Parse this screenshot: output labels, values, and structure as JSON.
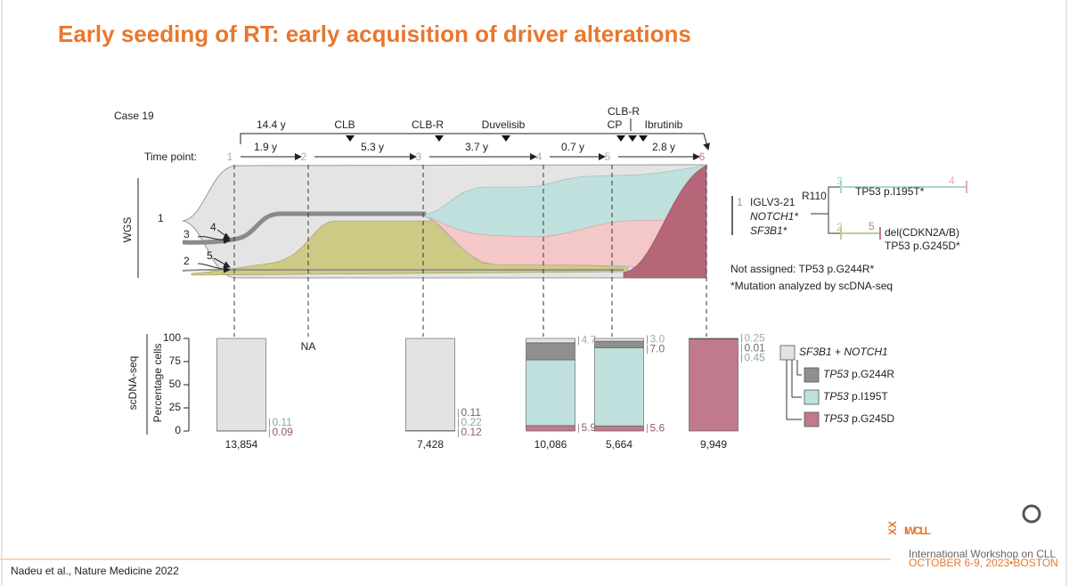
{
  "header": {
    "title": "Early seeding of RT: early acquisition of driver alterations"
  },
  "figure": {
    "case": "Case 19",
    "timeline": {
      "label": "Time point:",
      "points": [
        "1",
        "2",
        "3",
        "4",
        "5",
        "6"
      ],
      "total": "14.4 y",
      "intervals": [
        "1.9 y",
        "5.3 y",
        "3.7 y",
        "0.7 y",
        "2.8 y"
      ],
      "treatments": [
        "CLB",
        "CLB-R",
        "Duvelisib",
        "CLB-R",
        "CP",
        "Ibrutinib"
      ]
    },
    "wgs": {
      "label": "WGS",
      "clones": [
        "1",
        "3",
        "4",
        "2",
        "5"
      ]
    },
    "tree": {
      "nodes": [
        {
          "id": "1",
          "lines": [
            "IGLV3-21",
            "NOTCH1*",
            "SF3B1*"
          ],
          "sup": "R110"
        },
        {
          "id": "3",
          "lines": [
            "TP53 p.I195T*"
          ]
        },
        {
          "id": "4"
        },
        {
          "id": "2"
        },
        {
          "id": "5",
          "lines": [
            "del(CDKN2A/B)",
            "TP53 p.G245D*"
          ]
        }
      ],
      "not_assigned": "Not assigned: TP53 p.G244R*",
      "note": "*Mutation analyzed by scDNA-seq"
    },
    "scdna": {
      "title": "scDNA-seq",
      "y_label": "Percentage cells",
      "ylim": [
        0,
        100
      ],
      "yticks": [
        0,
        25,
        50,
        75,
        100
      ],
      "categories": [
        "13,854",
        null,
        "7,428",
        "10,086",
        "5,664",
        "9,949"
      ],
      "missing": "NA",
      "series": [
        {
          "name": "SF3B1 + NOTCH1",
          "color": "#e3e3e3",
          "values": [
            99.8,
            null,
            99.55,
            4.7,
            3.0,
            0.25
          ],
          "value_labels": [
            null,
            null,
            null,
            "4.7",
            "3.0",
            "0.25"
          ]
        },
        {
          "name": "TP53 p.G244R",
          "color": "#8f8f8f",
          "values": [
            null,
            null,
            0.11,
            18.4,
            7.0,
            0.01
          ],
          "value_labels": [
            null,
            null,
            "0.11",
            null,
            "7.0",
            "0.01"
          ]
        },
        {
          "name": "TP53 p.I195T",
          "color": "#bfe0dc",
          "values": [
            0.11,
            null,
            0.22,
            71,
            84.4,
            0.45
          ],
          "value_labels": [
            "0.11",
            null,
            "0.22",
            null,
            null,
            "0.45"
          ]
        },
        {
          "name": "TP53 p.G245D",
          "color": "#c07a8c",
          "values": [
            0.09,
            null,
            0.12,
            5.9,
            5.6,
            99.29
          ],
          "value_labels": [
            "0.09",
            null,
            "0.12",
            "5.9",
            "5.6",
            null
          ]
        }
      ]
    }
  },
  "footer": {
    "citation": "Nadeu et al., Nature Medicine 2022",
    "logo": {
      "roman": "XX",
      "name": "IWCLL",
      "tagline": "International Workshop on CLL",
      "date": "OCTOBER 6-9, 2023•BOSTON"
    }
  }
}
